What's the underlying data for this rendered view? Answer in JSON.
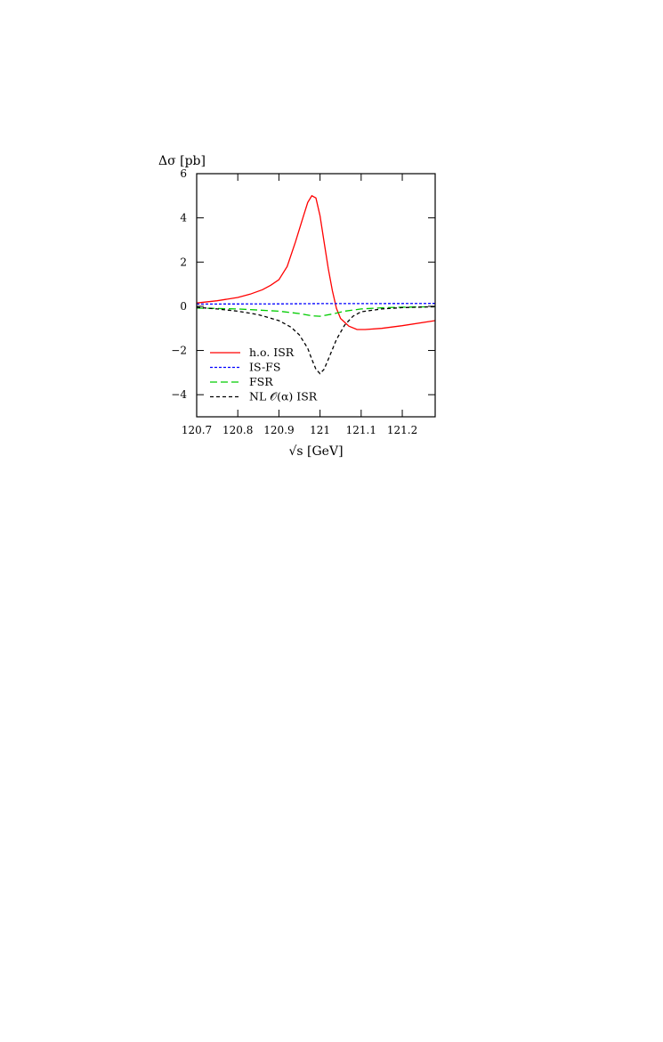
{
  "chart_data": {
    "type": "line",
    "xlabel": "√s [GeV]",
    "ylabel": "Δσ [pb]",
    "xlim": [
      120.7,
      121.28
    ],
    "ylim": [
      -5,
      6
    ],
    "x_ticks": [
      120.7,
      120.8,
      120.9,
      121.0,
      121.1,
      121.2
    ],
    "x_tick_labels": [
      "120.7",
      "120.8",
      "120.9",
      "121",
      "121.1",
      "121.2"
    ],
    "y_ticks": [
      -4,
      -2,
      0,
      2,
      4,
      6
    ],
    "y_tick_labels": [
      "−4",
      "−2",
      "0",
      "2",
      "4",
      "6"
    ],
    "grid": false,
    "legend_position": "bottom-left",
    "series": [
      {
        "name": "h.o. ISR",
        "color": "#ff0000",
        "dash": "solid",
        "x": [
          120.7,
          120.75,
          120.8,
          120.83,
          120.86,
          120.88,
          120.9,
          120.92,
          120.94,
          120.96,
          120.97,
          120.98,
          120.99,
          121.0,
          121.01,
          121.02,
          121.03,
          121.04,
          121.05,
          121.07,
          121.09,
          121.11,
          121.15,
          121.2,
          121.28
        ],
        "y": [
          0.15,
          0.25,
          0.4,
          0.55,
          0.75,
          0.95,
          1.2,
          1.8,
          2.9,
          4.1,
          4.7,
          5.0,
          4.9,
          4.1,
          2.9,
          1.7,
          0.7,
          -0.1,
          -0.55,
          -0.9,
          -1.05,
          -1.05,
          -1.0,
          -0.88,
          -0.65
        ]
      },
      {
        "name": "IS-FS",
        "color": "#0000ff",
        "dash": "short",
        "x": [
          120.7,
          120.9,
          121.0,
          121.1,
          121.28
        ],
        "y": [
          0.1,
          0.11,
          0.12,
          0.12,
          0.13
        ]
      },
      {
        "name": "FSR",
        "color": "#00cc00",
        "dash": "long",
        "x": [
          120.7,
          120.8,
          120.9,
          120.95,
          120.98,
          121.0,
          121.03,
          121.06,
          121.1,
          121.15,
          121.2,
          121.28
        ],
        "y": [
          -0.08,
          -0.12,
          -0.22,
          -0.33,
          -0.43,
          -0.45,
          -0.35,
          -0.22,
          -0.12,
          -0.07,
          -0.04,
          -0.02
        ]
      },
      {
        "name": "NL 𝒪(α) ISR",
        "color": "#000000",
        "dash": "medium",
        "x": [
          120.7,
          120.75,
          120.8,
          120.85,
          120.9,
          120.93,
          120.95,
          120.97,
          120.98,
          120.99,
          121.0,
          121.01,
          121.02,
          121.04,
          121.06,
          121.08,
          121.1,
          121.15,
          121.2,
          121.28
        ],
        "y": [
          -0.05,
          -0.12,
          -0.22,
          -0.38,
          -0.65,
          -0.95,
          -1.3,
          -1.9,
          -2.4,
          -2.85,
          -3.05,
          -2.85,
          -2.4,
          -1.5,
          -0.85,
          -0.45,
          -0.25,
          -0.12,
          -0.06,
          -0.02
        ]
      }
    ]
  }
}
